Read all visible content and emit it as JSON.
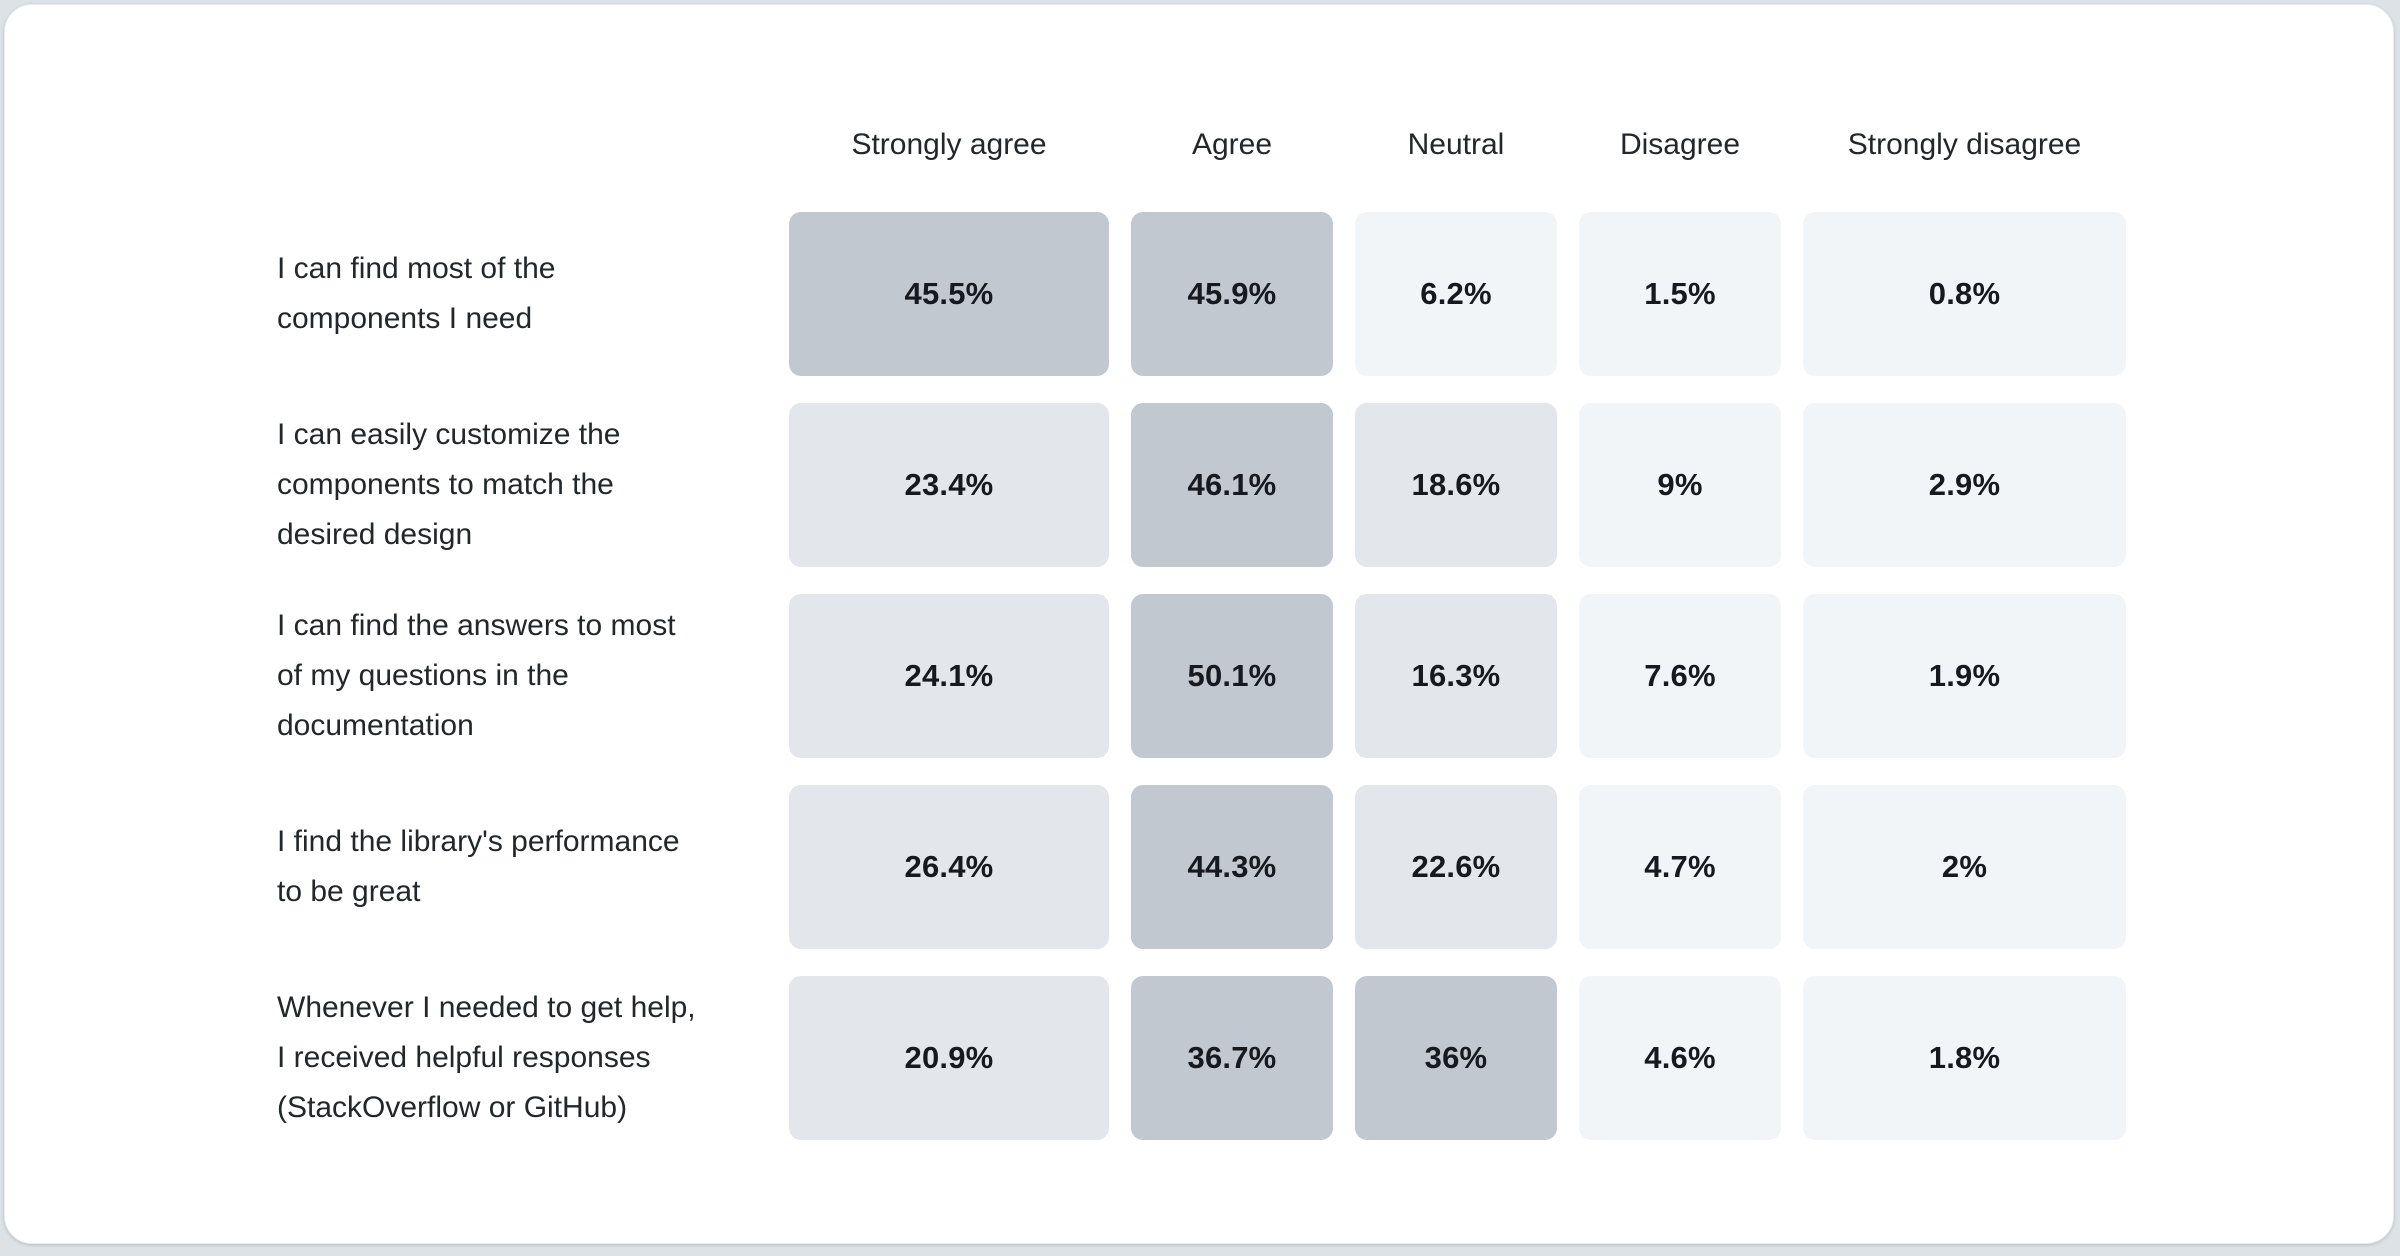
{
  "card": {
    "background": "#ffffff",
    "page_background": "#dde2e6"
  },
  "chart_data": {
    "type": "heatmap",
    "title": "",
    "legend_position": "none",
    "grid": "off",
    "columns": [
      "Strongly agree",
      "Agree",
      "Neutral",
      "Disagree",
      "Strongly disagree"
    ],
    "rows": [
      {
        "label": "I can find most of the components I need",
        "label_lines": [
          "I can find most of the",
          "components I need"
        ],
        "values": [
          45.5,
          45.9,
          6.2,
          1.5,
          0.8
        ],
        "value_labels": [
          "45.5%",
          "45.9%",
          "6.2%",
          "1.5%",
          "0.8%"
        ]
      },
      {
        "label": "I can easily customize the components to match the desired design",
        "label_lines": [
          "I can easily customize the",
          "components to match the",
          "desired design"
        ],
        "values": [
          23.4,
          46.1,
          18.6,
          9,
          2.9
        ],
        "value_labels": [
          "23.4%",
          "46.1%",
          "18.6%",
          "9%",
          "2.9%"
        ]
      },
      {
        "label": "I can find the answers to most of my questions in the documentation",
        "label_lines": [
          "I can find the answers to most",
          "of my questions in the",
          "documentation"
        ],
        "values": [
          24.1,
          50.1,
          16.3,
          7.6,
          1.9
        ],
        "value_labels": [
          "24.1%",
          "50.1%",
          "16.3%",
          "7.6%",
          "1.9%"
        ]
      },
      {
        "label": "I find the library's performance to be great",
        "label_lines": [
          "I find the library's performance",
          "to be great"
        ],
        "values": [
          26.4,
          44.3,
          22.6,
          4.7,
          2
        ],
        "value_labels": [
          "26.4%",
          "44.3%",
          "22.6%",
          "4.7%",
          "2%"
        ]
      },
      {
        "label": "Whenever I needed to get help, I received helpful responses (StackOverflow or GitHub)",
        "label_lines": [
          "Whenever I needed to get help,",
          "I received helpful responses",
          "(StackOverflow or GitHub)"
        ],
        "values": [
          20.9,
          36.7,
          36,
          4.6,
          1.8
        ],
        "value_labels": [
          "20.9%",
          "36.7%",
          "36%",
          "4.6%",
          "1.8%"
        ]
      }
    ],
    "color_scale": {
      "bins": [
        {
          "min": 30,
          "color": "#c1c8cf"
        },
        {
          "min": 10,
          "color": "#e3e7eb"
        },
        {
          "min": 0,
          "color": "#f2f5f8"
        }
      ]
    },
    "text_colors": {
      "header": "#21272a",
      "row_label": "#21272a",
      "cell_value": "#16191d"
    }
  }
}
